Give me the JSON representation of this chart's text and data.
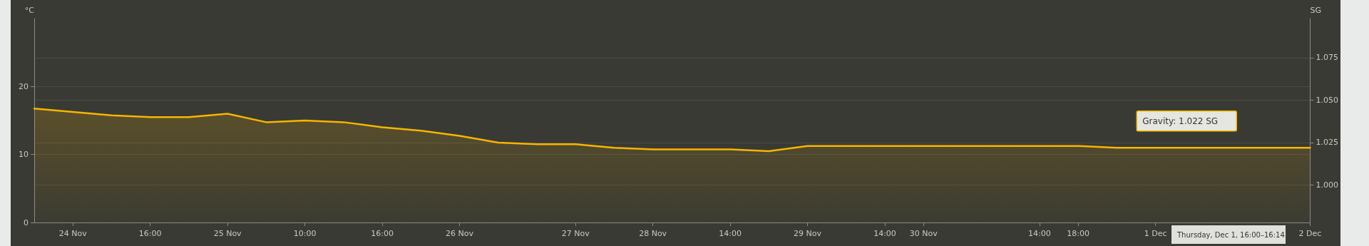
{
  "chart_data": {
    "type": "area",
    "ylabel": "°C",
    "y2label": "SG",
    "categories": [
      null,
      "24 Nov",
      null,
      "16:00",
      null,
      "25 Nov",
      null,
      "10:00",
      null,
      "16:00",
      null,
      "26 Nov",
      null,
      null,
      "27 Nov",
      null,
      "28 Nov",
      null,
      "14:00",
      null,
      "29 Nov",
      null,
      "14:00",
      "30 Nov",
      null,
      null,
      "14:00",
      "18:00",
      null,
      "1 Dec",
      null,
      null,
      null,
      "2 Dec"
    ],
    "series": [
      {
        "color": "#f7b500",
        "axis": "y2",
        "values": [
          1.045,
          1.043,
          1.041,
          1.04,
          1.04,
          1.042,
          1.037,
          1.038,
          1.037,
          1.034,
          1.032,
          1.029,
          1.025,
          1.024,
          1.024,
          1.022,
          1.021,
          1.021,
          1.021,
          1.02,
          1.023,
          1.023,
          1.023,
          1.023,
          1.023,
          1.023,
          1.023,
          1.023,
          1.022,
          1.022,
          1.022,
          1.022,
          1.022,
          1.022
        ]
      }
    ],
    "ylim": [
      0,
      30
    ],
    "yticks": [
      0,
      10,
      20
    ],
    "y2lim": [
      0.978,
      1.098
    ],
    "y2ticks": [
      {
        "value": 1.0,
        "label": "1.000"
      },
      1.025,
      {
        "value": 1.05,
        "label": "1.050"
      },
      1.075
    ],
    "grid": "y",
    "marker": "none",
    "line_style": "solid",
    "annotations": [
      "Gravity: 1.022 SG",
      "Thursday, Dec 1, 16:00–16:14"
    ]
  }
}
